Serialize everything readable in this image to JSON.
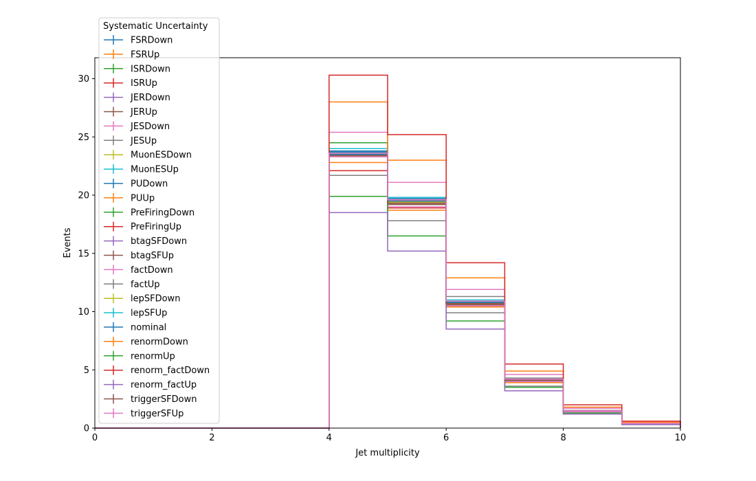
{
  "chart_data": {
    "type": "line",
    "xlabel": "Jet multiplicity",
    "ylabel": "Events",
    "xlim": [
      0,
      10
    ],
    "ylim": [
      0,
      31.8
    ],
    "x_ticks": [
      0,
      2,
      4,
      6,
      8,
      10
    ],
    "y_ticks": [
      0,
      5,
      10,
      15,
      20,
      25,
      30
    ],
    "grid": false,
    "legend_title": "Systematic Uncertainty",
    "legend_position": "top-left",
    "bin_edges": [
      0,
      1,
      2,
      3,
      4,
      5,
      6,
      7,
      8,
      9,
      10
    ],
    "series": [
      {
        "name": "FSRDown",
        "color": "#1f77b4",
        "values": [
          0,
          0,
          0,
          0,
          23.7,
          19.8,
          10.9,
          4.2,
          1.5,
          0.4
        ]
      },
      {
        "name": "FSRUp",
        "color": "#ff7f0e",
        "values": [
          0,
          0,
          0,
          0,
          22.8,
          18.7,
          10.4,
          3.9,
          1.4,
          0.4
        ]
      },
      {
        "name": "ISRDown",
        "color": "#2ca02c",
        "values": [
          0,
          0,
          0,
          0,
          24.5,
          19.2,
          10.8,
          4.1,
          1.5,
          0.4
        ]
      },
      {
        "name": "ISRUp",
        "color": "#d62728",
        "values": [
          0,
          0,
          0,
          0,
          22.1,
          18.9,
          10.5,
          4.0,
          1.4,
          0.4
        ]
      },
      {
        "name": "JERDown",
        "color": "#9467bd",
        "values": [
          0,
          0,
          0,
          0,
          23.4,
          19.5,
          10.7,
          4.1,
          1.5,
          0.4
        ]
      },
      {
        "name": "JERUp",
        "color": "#8c564b",
        "values": [
          0,
          0,
          0,
          0,
          23.3,
          19.4,
          10.6,
          4.0,
          1.4,
          0.4
        ]
      },
      {
        "name": "JESDown",
        "color": "#e377c2",
        "values": [
          0,
          0,
          0,
          0,
          25.4,
          21.1,
          11.9,
          4.6,
          1.7,
          0.5
        ]
      },
      {
        "name": "JESUp",
        "color": "#7f7f7f",
        "values": [
          0,
          0,
          0,
          0,
          21.7,
          17.8,
          9.9,
          3.6,
          1.3,
          0.3
        ]
      },
      {
        "name": "MuonESDown",
        "color": "#bcbd22",
        "values": [
          0,
          0,
          0,
          0,
          23.5,
          19.6,
          10.7,
          4.1,
          1.5,
          0.4
        ]
      },
      {
        "name": "MuonESUp",
        "color": "#17becf",
        "values": [
          0,
          0,
          0,
          0,
          24.0,
          19.8,
          11.0,
          4.2,
          1.5,
          0.4
        ]
      },
      {
        "name": "PUDown",
        "color": "#1f77b4",
        "values": [
          0,
          0,
          0,
          0,
          23.8,
          19.7,
          10.9,
          4.2,
          1.5,
          0.4
        ]
      },
      {
        "name": "PUUp",
        "color": "#ff7f0e",
        "values": [
          0,
          0,
          0,
          0,
          23.6,
          19.5,
          10.8,
          4.1,
          1.5,
          0.4
        ]
      },
      {
        "name": "PreFiringDown",
        "color": "#2ca02c",
        "values": [
          0,
          0,
          0,
          0,
          23.5,
          19.4,
          10.8,
          4.1,
          1.5,
          0.4
        ]
      },
      {
        "name": "PreFiringUp",
        "color": "#d62728",
        "values": [
          0,
          0,
          0,
          0,
          23.4,
          19.3,
          10.7,
          4.1,
          1.5,
          0.4
        ]
      },
      {
        "name": "btagSFDown",
        "color": "#9467bd",
        "values": [
          0,
          0,
          0,
          0,
          23.5,
          19.4,
          10.8,
          4.1,
          1.5,
          0.4
        ]
      },
      {
        "name": "btagSFUp",
        "color": "#8c564b",
        "values": [
          0,
          0,
          0,
          0,
          23.4,
          19.2,
          10.6,
          4.0,
          1.4,
          0.4
        ]
      },
      {
        "name": "factDown",
        "color": "#e377c2",
        "values": [
          0,
          0,
          0,
          0,
          23.3,
          19.0,
          10.5,
          4.0,
          1.4,
          0.4
        ]
      },
      {
        "name": "factUp",
        "color": "#7f7f7f",
        "values": [
          0,
          0,
          0,
          0,
          23.5,
          19.6,
          11.3,
          4.3,
          1.5,
          0.4
        ]
      },
      {
        "name": "lepSFDown",
        "color": "#bcbd22",
        "values": [
          0,
          0,
          0,
          0,
          23.4,
          19.4,
          10.7,
          4.1,
          1.5,
          0.4
        ]
      },
      {
        "name": "lepSFUp",
        "color": "#17becf",
        "values": [
          0,
          0,
          0,
          0,
          23.6,
          19.6,
          10.8,
          4.2,
          1.5,
          0.4
        ]
      },
      {
        "name": "nominal",
        "color": "#1f77b4",
        "values": [
          0,
          0,
          0,
          0,
          23.5,
          19.5,
          10.8,
          4.1,
          1.5,
          0.4
        ]
      },
      {
        "name": "renormDown",
        "color": "#ff7f0e",
        "values": [
          0,
          0,
          0,
          0,
          28.0,
          23.0,
          12.9,
          4.9,
          1.8,
          0.5
        ]
      },
      {
        "name": "renormUp",
        "color": "#2ca02c",
        "values": [
          0,
          0,
          0,
          0,
          19.9,
          16.5,
          9.2,
          3.5,
          1.3,
          0.4
        ]
      },
      {
        "name": "renorm_factDown",
        "color": "#d62728",
        "values": [
          0,
          0,
          0,
          0,
          30.3,
          25.2,
          14.2,
          5.5,
          2.0,
          0.6
        ]
      },
      {
        "name": "renorm_factUp",
        "color": "#9467bd",
        "values": [
          0,
          0,
          0,
          0,
          18.5,
          15.2,
          8.5,
          3.2,
          1.2,
          0.3
        ]
      },
      {
        "name": "triggerSFDown",
        "color": "#8c564b",
        "values": [
          0,
          0,
          0,
          0,
          23.4,
          19.3,
          10.7,
          4.1,
          1.5,
          0.4
        ]
      },
      {
        "name": "triggerSFUp",
        "color": "#e377c2",
        "values": [
          0,
          0,
          0,
          0,
          23.6,
          19.6,
          10.9,
          4.2,
          1.5,
          0.4
        ]
      }
    ]
  }
}
